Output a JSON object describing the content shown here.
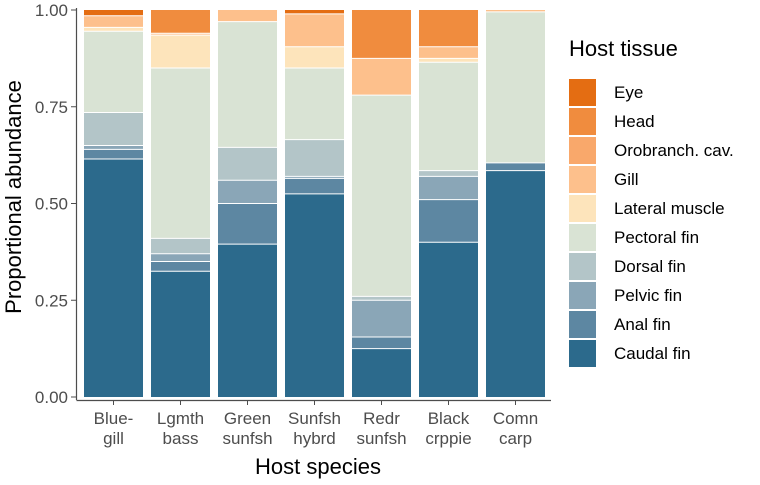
{
  "chart_data": {
    "type": "bar",
    "stacked": true,
    "xlabel": "Host species",
    "ylabel": "Proportional abundance",
    "ylim": [
      0,
      1
    ],
    "yticks": [
      "0.00",
      "0.25",
      "0.50",
      "0.75",
      "1.00"
    ],
    "categories": [
      [
        "Blue-",
        "gill"
      ],
      [
        "Lgmth",
        "bass"
      ],
      [
        "Green",
        "sunfsh"
      ],
      [
        "Sunfsh",
        "hybrd"
      ],
      [
        "Redr",
        "sunfsh"
      ],
      [
        "Black",
        "crppie"
      ],
      [
        "Comn",
        "carp"
      ]
    ],
    "legend_title": "Host tissue",
    "legend_position": "right",
    "series": [
      {
        "name": "Caudal fin",
        "color": "#2c6a8c",
        "values": [
          0.615,
          0.325,
          0.395,
          0.525,
          0.125,
          0.4,
          0.585
        ]
      },
      {
        "name": "Anal fin",
        "color": "#5d87a2",
        "values": [
          0.025,
          0.025,
          0.105,
          0.04,
          0.03,
          0.11,
          0.02
        ]
      },
      {
        "name": "Pelvic fin",
        "color": "#8aa6b7",
        "values": [
          0.01,
          0.02,
          0.06,
          0.005,
          0.095,
          0.06,
          0.0
        ]
      },
      {
        "name": "Dorsal fin",
        "color": "#b3c5c8",
        "values": [
          0.085,
          0.04,
          0.085,
          0.095,
          0.01,
          0.015,
          0.0
        ]
      },
      {
        "name": "Pectoral fin",
        "color": "#d9e3d4",
        "values": [
          0.21,
          0.44,
          0.325,
          0.185,
          0.52,
          0.28,
          0.39
        ]
      },
      {
        "name": "Lateral muscle",
        "color": "#fde4bb",
        "values": [
          0.01,
          0.085,
          0.0,
          0.055,
          0.0,
          0.01,
          0.0
        ]
      },
      {
        "name": "Gill",
        "color": "#fdc08c",
        "values": [
          0.03,
          0.005,
          0.03,
          0.085,
          0.095,
          0.03,
          0.005
        ]
      },
      {
        "name": "Orobranch. cav.",
        "color": "#f9a86b",
        "values": [
          0.0,
          0.0,
          0.0,
          0.0,
          0.0,
          0.0,
          0.0
        ]
      },
      {
        "name": "Head",
        "color": "#f08c3e",
        "values": [
          0.0,
          0.06,
          0.0,
          0.0,
          0.125,
          0.095,
          0.0
        ]
      },
      {
        "name": "Eye",
        "color": "#e46d12",
        "values": [
          0.015,
          0.0,
          0.0,
          0.01,
          0.0,
          0.0,
          0.0
        ]
      }
    ]
  }
}
